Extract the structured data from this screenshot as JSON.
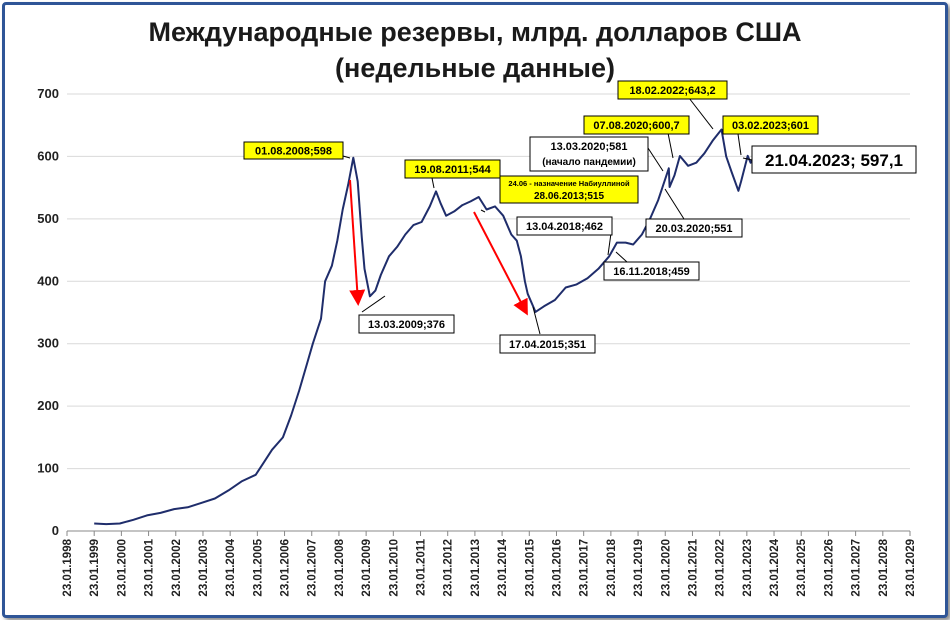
{
  "chart_data": {
    "type": "line",
    "title": "Международные резервы, млрд. долларов США",
    "subtitle": "(недельные данные)",
    "xlabel": "",
    "ylabel": "",
    "xlim": [
      1998.06,
      2029.06
    ],
    "ylim": [
      0,
      700
    ],
    "y_ticks": [
      0,
      100,
      200,
      300,
      400,
      500,
      600,
      700
    ],
    "x_ticks": [
      {
        "value": 1998.06,
        "label": "23.01.1998"
      },
      {
        "value": 1999.06,
        "label": "23.01.1999"
      },
      {
        "value": 2000.06,
        "label": "23.01.2000"
      },
      {
        "value": 2001.06,
        "label": "23.01.2001"
      },
      {
        "value": 2002.06,
        "label": "23.01.2002"
      },
      {
        "value": 2003.06,
        "label": "23.01.2003"
      },
      {
        "value": 2004.06,
        "label": "23.01.2004"
      },
      {
        "value": 2005.06,
        "label": "23.01.2005"
      },
      {
        "value": 2006.06,
        "label": "23.01.2006"
      },
      {
        "value": 2007.06,
        "label": "23.01.2007"
      },
      {
        "value": 2008.06,
        "label": "23.01.2008"
      },
      {
        "value": 2009.06,
        "label": "23.01.2009"
      },
      {
        "value": 2010.06,
        "label": "23.01.2010"
      },
      {
        "value": 2011.06,
        "label": "23.01.2011"
      },
      {
        "value": 2012.06,
        "label": "23.01.2012"
      },
      {
        "value": 2013.06,
        "label": "23.01.2013"
      },
      {
        "value": 2014.06,
        "label": "23.01.2014"
      },
      {
        "value": 2015.06,
        "label": "23.01.2015"
      },
      {
        "value": 2016.06,
        "label": "23.01.2016"
      },
      {
        "value": 2017.06,
        "label": "23.01.2017"
      },
      {
        "value": 2018.06,
        "label": "23.01.2018"
      },
      {
        "value": 2019.06,
        "label": "23.01.2019"
      },
      {
        "value": 2020.06,
        "label": "23.01.2020"
      },
      {
        "value": 2021.06,
        "label": "23.01.2021"
      },
      {
        "value": 2022.06,
        "label": "23.01.2022"
      },
      {
        "value": 2023.06,
        "label": "23.01.2023"
      },
      {
        "value": 2024.06,
        "label": "23.01.2024"
      },
      {
        "value": 2025.06,
        "label": "23.01.2025"
      },
      {
        "value": 2026.06,
        "label": "23.01.2026"
      },
      {
        "value": 2027.06,
        "label": "23.01.2027"
      },
      {
        "value": 2028.06,
        "label": "23.01.2028"
      },
      {
        "value": 2029.06,
        "label": "23.01.2029"
      }
    ],
    "grid": true,
    "series": [
      {
        "name": "",
        "color": "#1f2d6b",
        "points": [
          [
            1999.06,
            12
          ],
          [
            1999.5,
            11
          ],
          [
            2000.0,
            12
          ],
          [
            2000.5,
            18
          ],
          [
            2001.0,
            25
          ],
          [
            2001.5,
            29
          ],
          [
            2002.0,
            35
          ],
          [
            2002.5,
            38
          ],
          [
            2003.0,
            45
          ],
          [
            2003.5,
            52
          ],
          [
            2004.0,
            65
          ],
          [
            2004.5,
            80
          ],
          [
            2005.0,
            90
          ],
          [
            2005.3,
            110
          ],
          [
            2005.6,
            130
          ],
          [
            2006.0,
            150
          ],
          [
            2006.3,
            185
          ],
          [
            2006.6,
            225
          ],
          [
            2006.9,
            270
          ],
          [
            2007.1,
            300
          ],
          [
            2007.4,
            340
          ],
          [
            2007.55,
            400
          ],
          [
            2007.8,
            425
          ],
          [
            2008.0,
            465
          ],
          [
            2008.2,
            515
          ],
          [
            2008.4,
            555
          ],
          [
            2008.59,
            598
          ],
          [
            2008.75,
            560
          ],
          [
            2008.9,
            470
          ],
          [
            2009.0,
            420
          ],
          [
            2009.2,
            376
          ],
          [
            2009.4,
            385
          ],
          [
            2009.6,
            410
          ],
          [
            2009.9,
            440
          ],
          [
            2010.2,
            455
          ],
          [
            2010.5,
            475
          ],
          [
            2010.8,
            490
          ],
          [
            2011.1,
            495
          ],
          [
            2011.4,
            520
          ],
          [
            2011.63,
            544
          ],
          [
            2011.8,
            525
          ],
          [
            2012.0,
            505
          ],
          [
            2012.3,
            512
          ],
          [
            2012.6,
            522
          ],
          [
            2012.9,
            528
          ],
          [
            2013.2,
            535
          ],
          [
            2013.49,
            515
          ],
          [
            2013.8,
            520
          ],
          [
            2014.1,
            505
          ],
          [
            2014.4,
            475
          ],
          [
            2014.6,
            465
          ],
          [
            2014.75,
            440
          ],
          [
            2014.9,
            400
          ],
          [
            2015.0,
            380
          ],
          [
            2015.29,
            351
          ],
          [
            2015.6,
            360
          ],
          [
            2016.0,
            370
          ],
          [
            2016.4,
            390
          ],
          [
            2016.8,
            395
          ],
          [
            2017.2,
            405
          ],
          [
            2017.6,
            420
          ],
          [
            2018.0,
            440
          ],
          [
            2018.28,
            462
          ],
          [
            2018.6,
            462
          ],
          [
            2018.88,
            459
          ],
          [
            2019.2,
            475
          ],
          [
            2019.5,
            500
          ],
          [
            2019.8,
            530
          ],
          [
            2020.19,
            581
          ],
          [
            2020.22,
            551
          ],
          [
            2020.4,
            570
          ],
          [
            2020.6,
            600.7
          ],
          [
            2020.9,
            585
          ],
          [
            2021.2,
            590
          ],
          [
            2021.5,
            605
          ],
          [
            2021.8,
            625
          ],
          [
            2022.13,
            643.2
          ],
          [
            2022.3,
            600
          ],
          [
            2022.5,
            575
          ],
          [
            2022.75,
            545
          ],
          [
            2022.85,
            560
          ],
          [
            2023.09,
            601
          ],
          [
            2023.2,
            590
          ],
          [
            2023.3,
            597.1
          ]
        ]
      }
    ],
    "annotations": [
      {
        "text": "01.08.2008;598",
        "style": "yellow"
      },
      {
        "text": "13.03.2009;376",
        "style": "white"
      },
      {
        "text": "19.08.2011;544",
        "style": "yellow"
      },
      {
        "text": "24.06 - назначение Набиуллиной",
        "style": "yellow"
      },
      {
        "text": "28.06.2013;515",
        "style": "yellow"
      },
      {
        "text": "13.04.2018;462",
        "style": "white"
      },
      {
        "text": "16.11.2018;459",
        "style": "white"
      },
      {
        "text": "17.04.2015;351",
        "style": "white"
      },
      {
        "text": "13.03.2020;581",
        "style": "white"
      },
      {
        "text": "(начало пандемии)",
        "style": "white"
      },
      {
        "text": "07.08.2020;600,7",
        "style": "yellow"
      },
      {
        "text": "20.03.2020;551",
        "style": "white"
      },
      {
        "text": "18.02.2022;643,2",
        "style": "yellow"
      },
      {
        "text": "03.02.2023;601",
        "style": "yellow"
      },
      {
        "text": "21.04.2023; 597,1",
        "style": "large"
      }
    ]
  }
}
